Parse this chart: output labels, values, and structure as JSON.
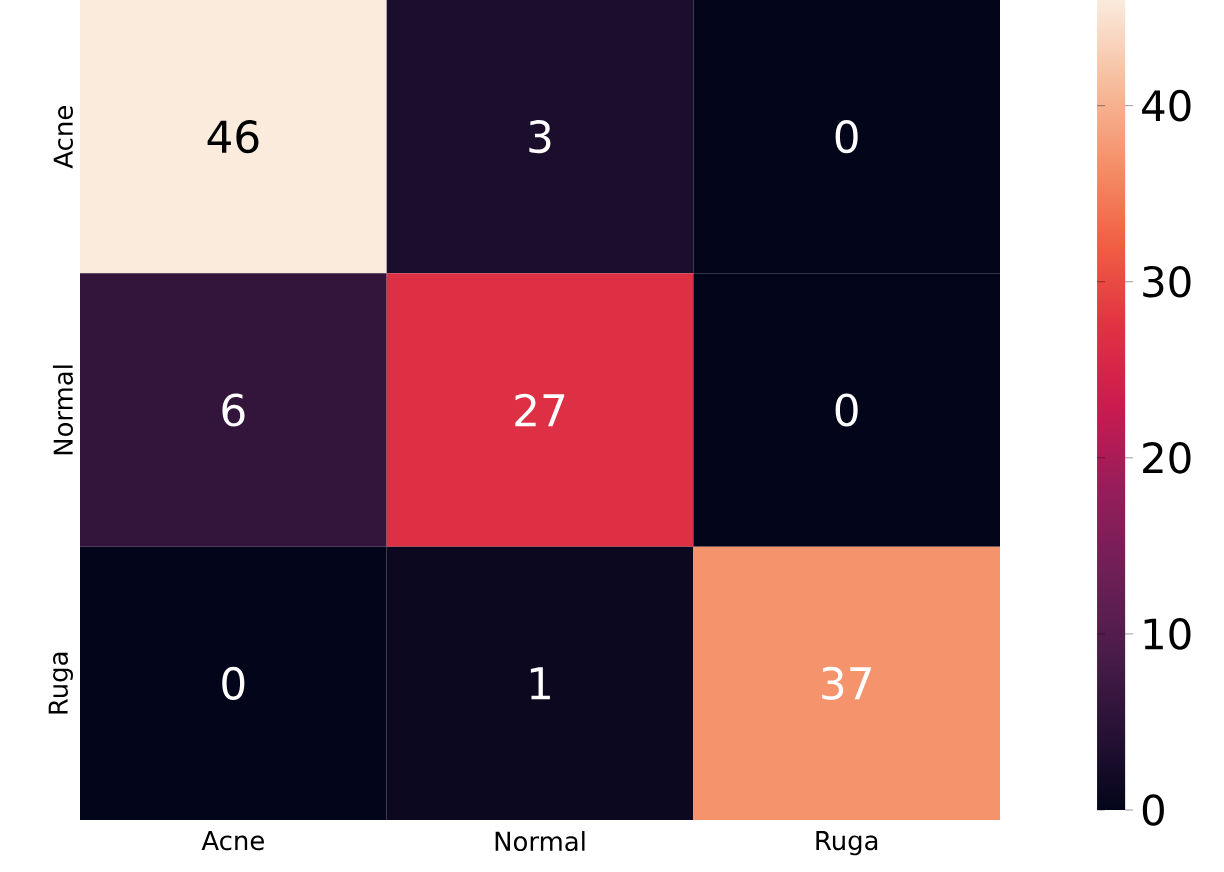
{
  "chart_data": {
    "type": "heatmap",
    "categories": [
      "Acne",
      "Normal",
      "Ruga"
    ],
    "y_categories": [
      "Acne",
      "Normal",
      "Ruga"
    ],
    "cells": [
      [
        46,
        3,
        0
      ],
      [
        6,
        27,
        0
      ],
      [
        0,
        1,
        37
      ]
    ],
    "data_labels": true,
    "clim": [
      0,
      46
    ],
    "cticks": [
      0,
      10,
      20,
      30,
      40
    ]
  }
}
